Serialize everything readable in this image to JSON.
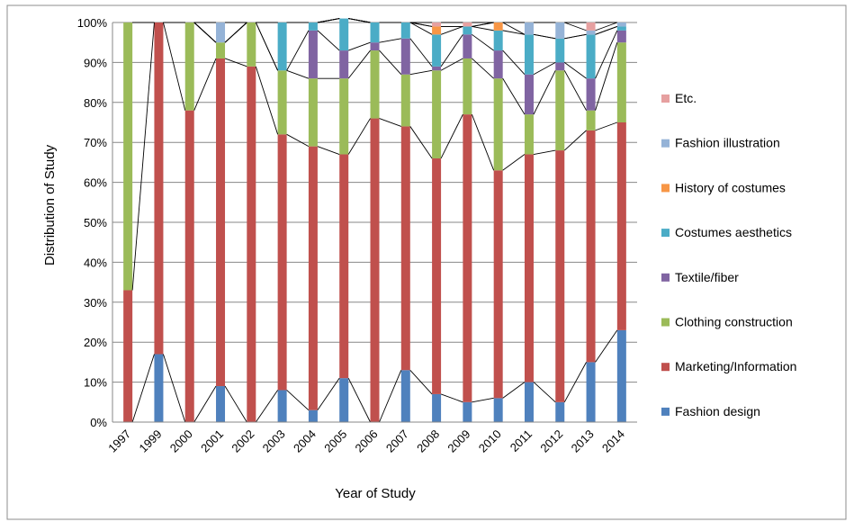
{
  "chart_data": {
    "type": "bar",
    "stacked": true,
    "percent": true,
    "xlabel": "Year of Study",
    "ylabel": "Distribution of Study",
    "ylim": [
      0,
      100
    ],
    "y_ticks": [
      "0%",
      "10%",
      "20%",
      "30%",
      "40%",
      "50%",
      "60%",
      "70%",
      "80%",
      "90%",
      "100%"
    ],
    "categories": [
      "1997",
      "1999",
      "2000",
      "2001",
      "2002",
      "2003",
      "2004",
      "2005",
      "2006",
      "2007",
      "2008",
      "2009",
      "2010",
      "2011",
      "2012",
      "2013",
      "2014"
    ],
    "legend_position": "right",
    "series_lines": true,
    "gridlines": "horizontal",
    "series": [
      {
        "name": "Fashion design",
        "color": "#4f81bd",
        "values": [
          0,
          17,
          0,
          9,
          0,
          8,
          3,
          11,
          0,
          13,
          7,
          5,
          6,
          10,
          5,
          15,
          23
        ]
      },
      {
        "name": "Marketing/Information",
        "color": "#c0504d",
        "values": [
          33,
          83,
          78,
          82,
          89,
          64,
          66,
          56,
          76,
          61,
          59,
          72,
          57,
          57,
          63,
          58,
          52
        ]
      },
      {
        "name": "Clothing construction",
        "color": "#9bbb59",
        "values": [
          67,
          0,
          22,
          4,
          11,
          16,
          17,
          19,
          17,
          13,
          22,
          14,
          23,
          10,
          20,
          5,
          20
        ]
      },
      {
        "name": "Textile/fiber",
        "color": "#8064a2",
        "values": [
          0,
          0,
          0,
          0,
          0,
          0,
          12,
          7,
          2,
          9,
          1,
          6,
          7,
          10,
          2,
          8,
          3
        ]
      },
      {
        "name": "Costumes aesthetics",
        "color": "#4bacc6",
        "values": [
          0,
          0,
          0,
          0,
          0,
          12,
          2,
          8,
          5,
          4,
          8,
          2,
          5,
          10,
          6,
          11,
          1
        ]
      },
      {
        "name": "History of costumes",
        "color": "#f79646",
        "values": [
          0,
          0,
          0,
          0,
          0,
          0,
          0,
          0,
          0,
          0,
          2,
          0,
          2,
          0,
          0,
          0,
          0
        ]
      },
      {
        "name": "Fashion illustration",
        "color": "#95b3d7",
        "values": [
          0,
          0,
          0,
          5,
          0,
          0,
          0,
          0,
          0,
          0,
          0,
          0,
          0,
          3,
          4,
          1,
          1
        ]
      },
      {
        "name": "Etc.",
        "color": "#e6a0a0",
        "values": [
          0,
          0,
          0,
          0,
          0,
          0,
          0,
          0,
          0,
          0,
          1,
          1,
          0,
          0,
          0,
          2,
          0
        ]
      }
    ]
  }
}
